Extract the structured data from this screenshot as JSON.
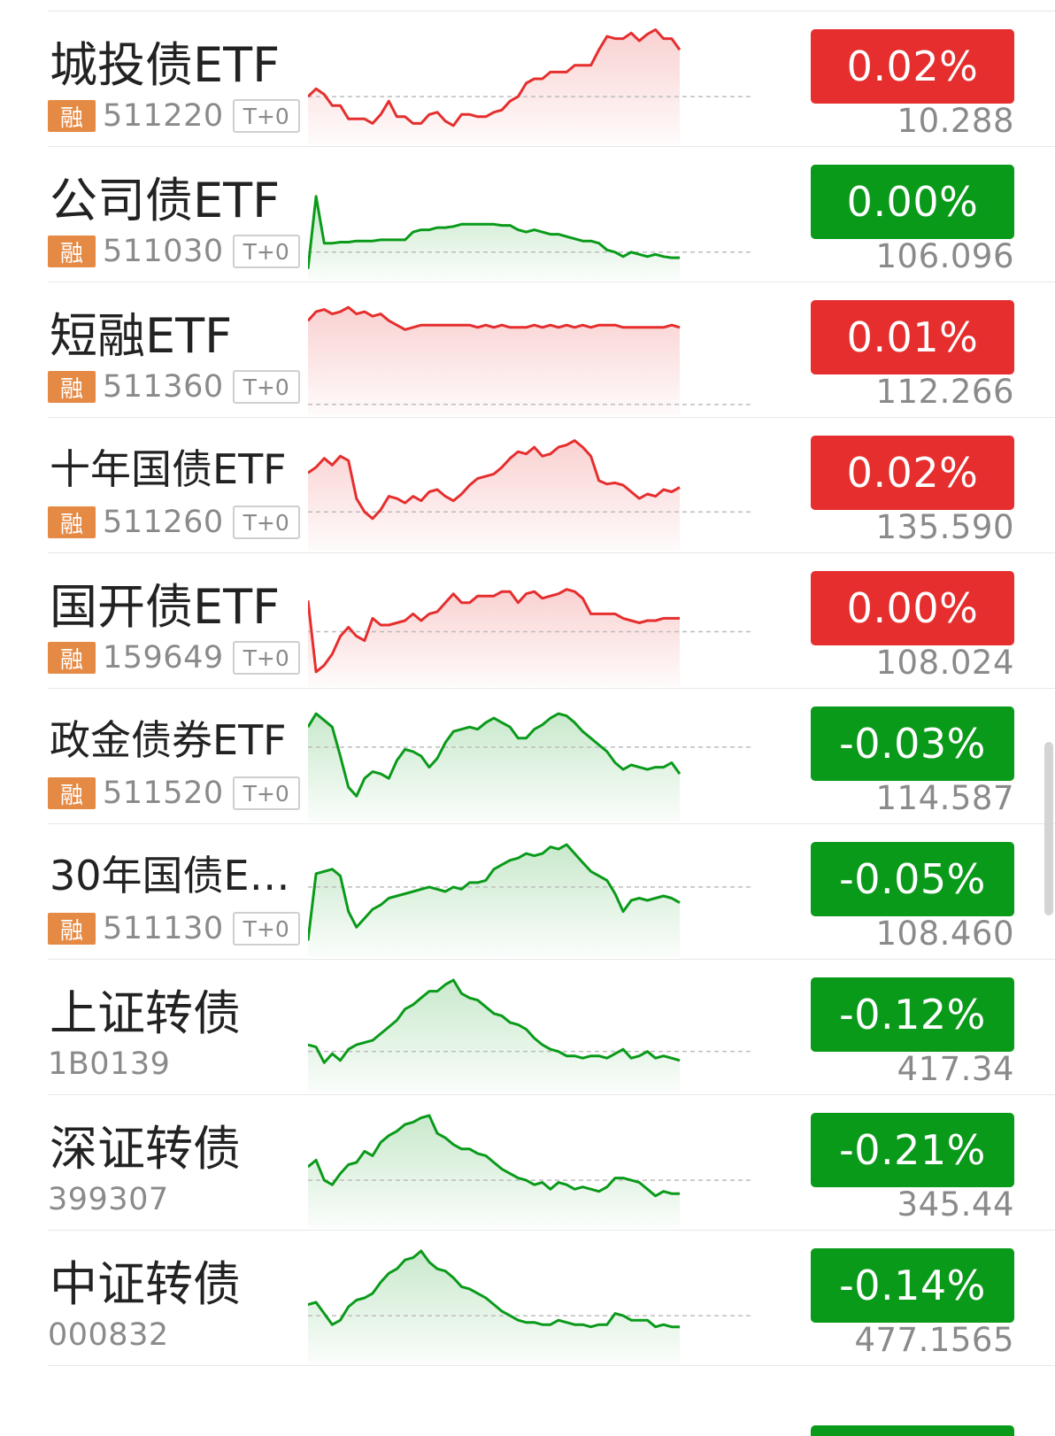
{
  "colors": {
    "up": "#e62e2e",
    "down": "#0a9a1a",
    "rong_badge": "#e58a45"
  },
  "rows": [
    {
      "name": "城投债ETF",
      "code": "511220",
      "rong": "融",
      "t0": "T+0",
      "change": "0.02%",
      "price": "10.288",
      "trend": "up",
      "spark": [
        0.62,
        0.55,
        0.6,
        0.7,
        0.7,
        0.82,
        0.82,
        0.82,
        0.86,
        0.78,
        0.66,
        0.8,
        0.8,
        0.86,
        0.86,
        0.78,
        0.76,
        0.84,
        0.88,
        0.78,
        0.78,
        0.8,
        0.8,
        0.76,
        0.74,
        0.66,
        0.62,
        0.5,
        0.46,
        0.46,
        0.4,
        0.4,
        0.4,
        0.34,
        0.34,
        0.34,
        0.2,
        0.08,
        0.1,
        0.1,
        0.05,
        0.12,
        0.06,
        0.02,
        0.1,
        0.1,
        0.2
      ],
      "baseline": 0.62
    },
    {
      "name": "公司债ETF",
      "code": "511030",
      "rong": "融",
      "t0": "T+0",
      "change": "0.00%",
      "price": "106.096",
      "trend": "down",
      "spark": [
        0.95,
        0.3,
        0.72,
        0.72,
        0.71,
        0.71,
        0.7,
        0.7,
        0.7,
        0.69,
        0.69,
        0.69,
        0.69,
        0.62,
        0.6,
        0.6,
        0.58,
        0.58,
        0.57,
        0.55,
        0.55,
        0.55,
        0.55,
        0.55,
        0.56,
        0.56,
        0.6,
        0.62,
        0.6,
        0.62,
        0.64,
        0.64,
        0.66,
        0.68,
        0.7,
        0.7,
        0.72,
        0.78,
        0.8,
        0.84,
        0.8,
        0.82,
        0.84,
        0.82,
        0.84,
        0.85,
        0.85
      ],
      "baseline": 0.8
    },
    {
      "name": "短融ETF",
      "code": "511360",
      "rong": "融",
      "t0": "T+0",
      "change": "0.01%",
      "price": "112.266",
      "trend": "up",
      "spark": [
        0.2,
        0.12,
        0.1,
        0.14,
        0.12,
        0.08,
        0.14,
        0.12,
        0.16,
        0.14,
        0.2,
        0.24,
        0.28,
        0.26,
        0.24,
        0.24,
        0.24,
        0.24,
        0.24,
        0.24,
        0.24,
        0.26,
        0.24,
        0.26,
        0.24,
        0.26,
        0.26,
        0.26,
        0.24,
        0.26,
        0.24,
        0.26,
        0.24,
        0.26,
        0.24,
        0.26,
        0.24,
        0.24,
        0.24,
        0.26,
        0.26,
        0.26,
        0.26,
        0.26,
        0.26,
        0.24,
        0.26
      ],
      "baseline": 0.95
    },
    {
      "name": "十年国债ETF",
      "code": "511260",
      "rong": "融",
      "t0": "T+0",
      "change": "0.02%",
      "price": "135.590",
      "trend": "up",
      "spark": [
        0.35,
        0.3,
        0.22,
        0.28,
        0.2,
        0.24,
        0.58,
        0.7,
        0.76,
        0.68,
        0.56,
        0.58,
        0.62,
        0.56,
        0.6,
        0.52,
        0.5,
        0.56,
        0.6,
        0.54,
        0.46,
        0.4,
        0.38,
        0.36,
        0.3,
        0.22,
        0.16,
        0.18,
        0.12,
        0.2,
        0.18,
        0.12,
        0.1,
        0.06,
        0.12,
        0.2,
        0.42,
        0.45,
        0.44,
        0.46,
        0.52,
        0.58,
        0.54,
        0.56,
        0.5,
        0.52,
        0.48
      ],
      "baseline": 0.7
    },
    {
      "name": "国开债ETF",
      "code": "159649",
      "rong": "融",
      "t0": "T+0",
      "change": "0.00%",
      "price": "108.024",
      "trend": "up",
      "spark": [
        0.28,
        0.92,
        0.86,
        0.76,
        0.6,
        0.52,
        0.6,
        0.64,
        0.44,
        0.5,
        0.5,
        0.48,
        0.46,
        0.4,
        0.46,
        0.4,
        0.38,
        0.3,
        0.22,
        0.3,
        0.3,
        0.24,
        0.24,
        0.24,
        0.2,
        0.2,
        0.3,
        0.22,
        0.2,
        0.26,
        0.24,
        0.22,
        0.18,
        0.2,
        0.26,
        0.4,
        0.4,
        0.4,
        0.4,
        0.44,
        0.46,
        0.48,
        0.46,
        0.46,
        0.44,
        0.44,
        0.44
      ],
      "baseline": 0.56
    },
    {
      "name": "政金债券ETF",
      "code": "511520",
      "rong": "融",
      "t0": "T+0",
      "change": "-0.03%",
      "price": "114.587",
      "trend": "down",
      "spark": [
        0.2,
        0.08,
        0.14,
        0.2,
        0.46,
        0.74,
        0.82,
        0.66,
        0.6,
        0.62,
        0.66,
        0.5,
        0.4,
        0.42,
        0.46,
        0.56,
        0.48,
        0.34,
        0.24,
        0.22,
        0.2,
        0.22,
        0.16,
        0.12,
        0.16,
        0.2,
        0.3,
        0.3,
        0.22,
        0.18,
        0.12,
        0.08,
        0.1,
        0.16,
        0.24,
        0.3,
        0.36,
        0.42,
        0.52,
        0.58,
        0.54,
        0.56,
        0.58,
        0.56,
        0.56,
        0.52,
        0.62
      ],
      "baseline": 0.38
    },
    {
      "name": "30年国债ET...",
      "code": "511130",
      "rong": "融",
      "t0": "T+0",
      "change": "-0.05%",
      "price": "108.460",
      "trend": "down",
      "spark": [
        0.9,
        0.3,
        0.28,
        0.26,
        0.32,
        0.64,
        0.78,
        0.7,
        0.62,
        0.58,
        0.52,
        0.5,
        0.48,
        0.46,
        0.44,
        0.42,
        0.44,
        0.46,
        0.42,
        0.44,
        0.38,
        0.38,
        0.36,
        0.26,
        0.22,
        0.18,
        0.16,
        0.12,
        0.14,
        0.12,
        0.06,
        0.08,
        0.04,
        0.12,
        0.2,
        0.28,
        0.32,
        0.36,
        0.48,
        0.64,
        0.54,
        0.52,
        0.54,
        0.52,
        0.5,
        0.52,
        0.56
      ],
      "baseline": 0.42
    },
    {
      "name": "上证转债",
      "code": "1B0139",
      "rong": "",
      "t0": "",
      "change": "-0.12%",
      "price": "417.34",
      "trend": "down",
      "spark": [
        0.62,
        0.64,
        0.78,
        0.7,
        0.76,
        0.66,
        0.62,
        0.6,
        0.58,
        0.52,
        0.46,
        0.4,
        0.3,
        0.26,
        0.2,
        0.14,
        0.14,
        0.08,
        0.04,
        0.16,
        0.2,
        0.22,
        0.28,
        0.34,
        0.36,
        0.42,
        0.44,
        0.48,
        0.56,
        0.62,
        0.66,
        0.68,
        0.72,
        0.72,
        0.74,
        0.72,
        0.72,
        0.74,
        0.7,
        0.66,
        0.74,
        0.72,
        0.68,
        0.74,
        0.72,
        0.74,
        0.76
      ],
      "baseline": 0.68
    },
    {
      "name": "深证转债",
      "code": "399307",
      "rong": "",
      "t0": "",
      "change": "-0.21%",
      "price": "345.44",
      "trend": "down",
      "spark": [
        0.5,
        0.44,
        0.62,
        0.66,
        0.56,
        0.48,
        0.46,
        0.36,
        0.4,
        0.28,
        0.22,
        0.18,
        0.12,
        0.1,
        0.06,
        0.04,
        0.2,
        0.24,
        0.3,
        0.34,
        0.34,
        0.38,
        0.4,
        0.46,
        0.52,
        0.56,
        0.6,
        0.62,
        0.66,
        0.64,
        0.7,
        0.64,
        0.66,
        0.7,
        0.68,
        0.7,
        0.72,
        0.68,
        0.6,
        0.6,
        0.62,
        0.64,
        0.7,
        0.76,
        0.72,
        0.74,
        0.74
      ],
      "baseline": 0.62
    },
    {
      "name": "中证转债",
      "code": "000832",
      "rong": "",
      "t0": "",
      "change": "-0.14%",
      "price": "477.1565",
      "trend": "down",
      "spark": [
        0.52,
        0.5,
        0.6,
        0.7,
        0.66,
        0.54,
        0.48,
        0.46,
        0.42,
        0.32,
        0.24,
        0.2,
        0.12,
        0.1,
        0.04,
        0.14,
        0.2,
        0.22,
        0.28,
        0.36,
        0.38,
        0.42,
        0.46,
        0.52,
        0.58,
        0.62,
        0.66,
        0.68,
        0.68,
        0.7,
        0.7,
        0.66,
        0.68,
        0.7,
        0.7,
        0.72,
        0.7,
        0.7,
        0.6,
        0.62,
        0.66,
        0.66,
        0.66,
        0.72,
        0.7,
        0.72,
        0.72
      ],
      "baseline": 0.62
    }
  ]
}
